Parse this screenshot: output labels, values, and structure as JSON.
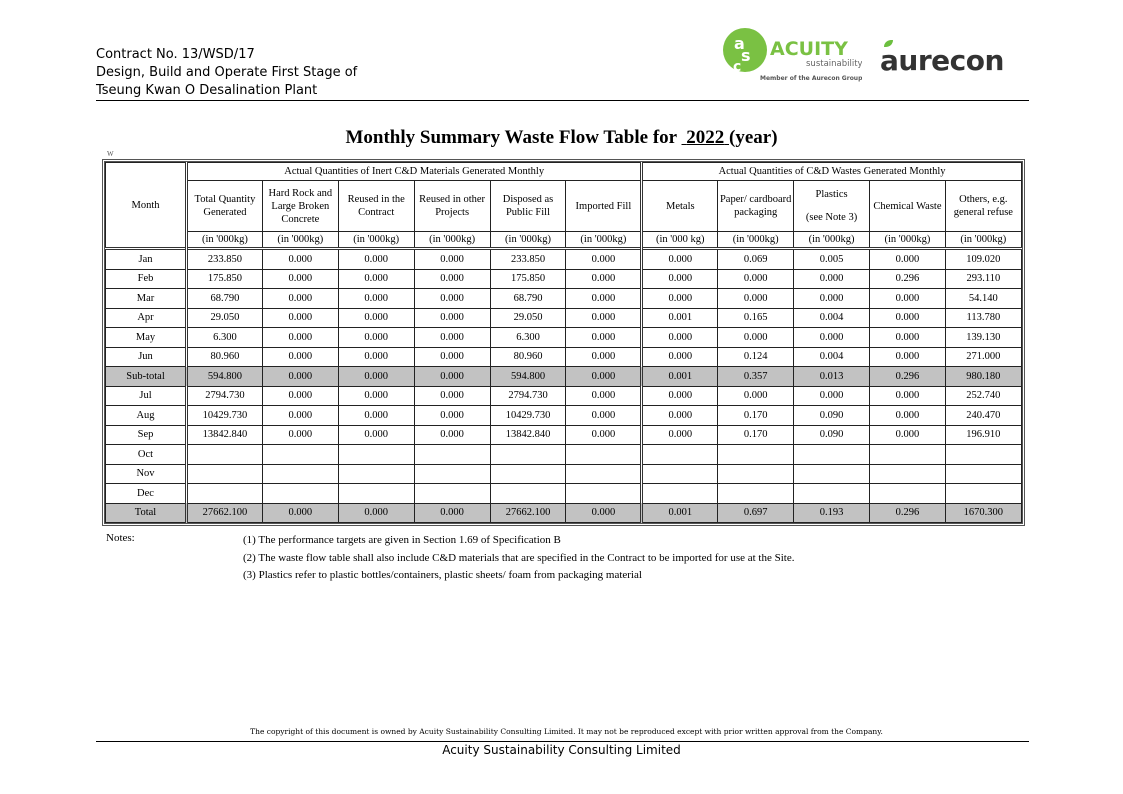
{
  "header": {
    "lines": [
      "Contract No. 13/WSD/17",
      "Design, Build and Operate First Stage of",
      "Tseung Kwan O Desalination Plant"
    ],
    "logos": {
      "acuity": "ACUITY",
      "acuity_sub": "sustainability",
      "acuity_member": "Member of the Aurecon Group",
      "aurecon": "aurecon"
    },
    "colors": {
      "acuity_green": "#7ac143",
      "aurecon_text": "#333333"
    }
  },
  "title": {
    "prefix": "Monthly Summary Waste Flow Table for",
    "year": "2022",
    "suffix": "(year)"
  },
  "marker": "W",
  "table": {
    "month_header": "Month",
    "group1": "Actual Quantities of Inert C&D Materials Generated Monthly",
    "group2": "Actual Quantities of C&D Wastes Generated Monthly",
    "columns": [
      "Total Quantity Generated",
      "Hard Rock and Large Broken Concrete",
      "Reused in the Contract",
      "Reused in other Projects",
      "Disposed as Public Fill",
      "Imported Fill",
      "Metals",
      "Paper/ cardboard packaging",
      "Plastics",
      "Chemical Waste",
      "Others, e.g. general refuse"
    ],
    "plastics_note": "(see Note 3)",
    "units": [
      "(in '000kg)",
      "(in '000kg)",
      "(in '000kg)",
      "(in '000kg)",
      "(in '000kg)",
      "(in '000kg)",
      "(in '000 kg)",
      "(in '000kg)",
      "(in '000kg)",
      "(in '000kg)",
      "(in '000kg)"
    ],
    "rows": [
      {
        "month": "Jan",
        "values": [
          "233.850",
          "0.000",
          "0.000",
          "0.000",
          "233.850",
          "0.000",
          "0.000",
          "0.069",
          "0.005",
          "0.000",
          "109.020"
        ]
      },
      {
        "month": "Feb",
        "values": [
          "175.850",
          "0.000",
          "0.000",
          "0.000",
          "175.850",
          "0.000",
          "0.000",
          "0.000",
          "0.000",
          "0.296",
          "293.110"
        ]
      },
      {
        "month": "Mar",
        "values": [
          "68.790",
          "0.000",
          "0.000",
          "0.000",
          "68.790",
          "0.000",
          "0.000",
          "0.000",
          "0.000",
          "0.000",
          "54.140"
        ]
      },
      {
        "month": "Apr",
        "values": [
          "29.050",
          "0.000",
          "0.000",
          "0.000",
          "29.050",
          "0.000",
          "0.001",
          "0.165",
          "0.004",
          "0.000",
          "113.780"
        ]
      },
      {
        "month": "May",
        "values": [
          "6.300",
          "0.000",
          "0.000",
          "0.000",
          "6.300",
          "0.000",
          "0.000",
          "0.000",
          "0.000",
          "0.000",
          "139.130"
        ]
      },
      {
        "month": "Jun",
        "values": [
          "80.960",
          "0.000",
          "0.000",
          "0.000",
          "80.960",
          "0.000",
          "0.000",
          "0.124",
          "0.004",
          "0.000",
          "271.000"
        ]
      },
      {
        "month": "Sub-total",
        "shade": true,
        "values": [
          "594.800",
          "0.000",
          "0.000",
          "0.000",
          "594.800",
          "0.000",
          "0.001",
          "0.357",
          "0.013",
          "0.296",
          "980.180"
        ]
      },
      {
        "month": "Jul",
        "values": [
          "2794.730",
          "0.000",
          "0.000",
          "0.000",
          "2794.730",
          "0.000",
          "0.000",
          "0.000",
          "0.000",
          "0.000",
          "252.740"
        ]
      },
      {
        "month": "Aug",
        "values": [
          "10429.730",
          "0.000",
          "0.000",
          "0.000",
          "10429.730",
          "0.000",
          "0.000",
          "0.170",
          "0.090",
          "0.000",
          "240.470"
        ]
      },
      {
        "month": "Sep",
        "values": [
          "13842.840",
          "0.000",
          "0.000",
          "0.000",
          "13842.840",
          "0.000",
          "0.000",
          "0.170",
          "0.090",
          "0.000",
          "196.910"
        ]
      },
      {
        "month": "Oct",
        "values": [
          "",
          "",
          "",
          "",
          "",
          "",
          "",
          "",
          "",
          "",
          ""
        ]
      },
      {
        "month": "Nov",
        "values": [
          "",
          "",
          "",
          "",
          "",
          "",
          "",
          "",
          "",
          "",
          ""
        ]
      },
      {
        "month": "Dec",
        "values": [
          "",
          "",
          "",
          "",
          "",
          "",
          "",
          "",
          "",
          "",
          ""
        ]
      },
      {
        "month": "Total",
        "shade": true,
        "values": [
          "27662.100",
          "0.000",
          "0.000",
          "0.000",
          "27662.100",
          "0.000",
          "0.001",
          "0.697",
          "0.193",
          "0.296",
          "1670.300"
        ]
      }
    ],
    "shade_color": "#c2c2c2"
  },
  "notes": {
    "label": "Notes:",
    "items": [
      "(1) The performance targets are given in Section 1.69 of Specification B",
      "(2) The waste flow table shall also include C&D materials that are specified in the Contract to be imported for use at the Site.",
      "(3) Plastics refer to plastic bottles/containers, plastic sheets/ foam from packaging material"
    ]
  },
  "footer": {
    "copyright": "The copyright of this document is owned by Acuity Sustainability Consulting Limited. It may not be reproduced except with prior written approval from the Company.",
    "company": "Acuity Sustainability Consulting Limited"
  }
}
